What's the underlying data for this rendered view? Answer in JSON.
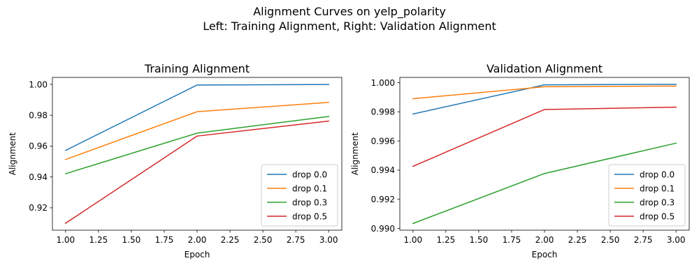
{
  "figure": {
    "suptitle_line1": "Alignment Curves on yelp_polarity",
    "suptitle_line2": "Left: Training Alignment, Right: Validation Alignment"
  },
  "chart_data": [
    {
      "type": "line",
      "title": "Training Alignment",
      "xlabel": "Epoch",
      "ylabel": "Alignment",
      "xlim": [
        0.9,
        3.1
      ],
      "ylim": [
        0.9055,
        1.0045
      ],
      "xticks": [
        "1.00",
        "1.25",
        "1.50",
        "1.75",
        "2.00",
        "2.25",
        "2.50",
        "2.75",
        "3.00"
      ],
      "yticks": [
        "0.92",
        "0.94",
        "0.96",
        "0.98",
        "1.00"
      ],
      "x": [
        1,
        2,
        3
      ],
      "grid": false,
      "legend_position": "lower-right",
      "series": [
        {
          "name": "drop 0.0",
          "color": "#1f77b4",
          "values": [
            0.9572,
            0.9996,
            0.9999
          ]
        },
        {
          "name": "drop 0.1",
          "color": "#ff7f0e",
          "values": [
            0.9513,
            0.9823,
            0.9883
          ]
        },
        {
          "name": "drop 0.3",
          "color": "#2ca02c",
          "values": [
            0.9421,
            0.9684,
            0.9792
          ]
        },
        {
          "name": "drop 0.5",
          "color": "#d62728",
          "values": [
            0.91,
            0.9665,
            0.9762
          ]
        }
      ]
    },
    {
      "type": "line",
      "title": "Validation Alignment",
      "xlabel": "Epoch",
      "ylabel": "Alignment",
      "xlim": [
        0.9,
        3.1
      ],
      "ylim": [
        0.98988,
        1.00036
      ],
      "xticks": [
        "1.00",
        "1.25",
        "1.50",
        "1.75",
        "2.00",
        "2.25",
        "2.50",
        "2.75",
        "3.00"
      ],
      "yticks": [
        "0.990",
        "0.992",
        "0.994",
        "0.996",
        "0.998",
        "1.000"
      ],
      "x": [
        1,
        2,
        3
      ],
      "grid": false,
      "legend_position": "lower-right",
      "series": [
        {
          "name": "drop 0.0",
          "color": "#1f77b4",
          "values": [
            0.99785,
            0.99985,
            0.99989
          ]
        },
        {
          "name": "drop 0.1",
          "color": "#ff7f0e",
          "values": [
            0.9989,
            0.99972,
            0.99977
          ]
        },
        {
          "name": "drop 0.3",
          "color": "#2ca02c",
          "values": [
            0.99034,
            0.99377,
            0.99585
          ]
        },
        {
          "name": "drop 0.5",
          "color": "#d62728",
          "values": [
            0.99426,
            0.99816,
            0.99832
          ]
        }
      ]
    }
  ]
}
